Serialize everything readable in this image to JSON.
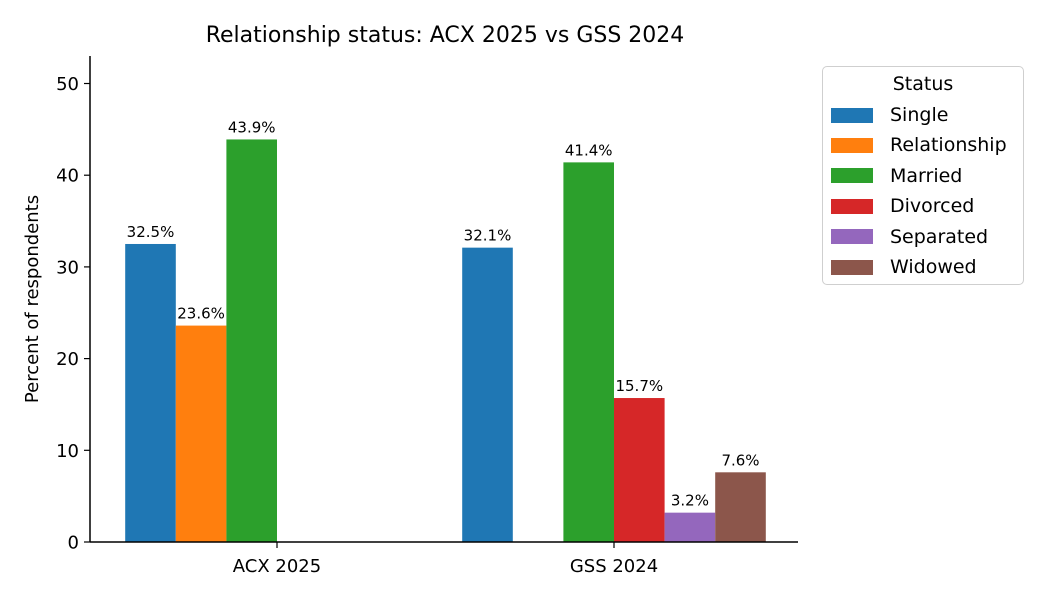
{
  "chart_data": {
    "type": "bar",
    "title": "Relationship status: ACX 2025 vs GSS 2024",
    "xlabel": "",
    "ylabel": "Percent of respondents",
    "categories": [
      "ACX 2025",
      "GSS 2024"
    ],
    "ylim": [
      0,
      53
    ],
    "yticks": [
      "0",
      "10",
      "20",
      "30",
      "40",
      "50"
    ],
    "grid": false,
    "legend": {
      "title": "Status",
      "placement": "outside-right-top"
    },
    "series": [
      {
        "name": "Single",
        "color": "#1f77b4",
        "values": [
          32.5,
          32.1
        ],
        "labels": [
          "32.5%",
          "32.1%"
        ]
      },
      {
        "name": "Relationship",
        "color": "#ff7f0e",
        "values": [
          23.6,
          null
        ],
        "labels": [
          "23.6%",
          null
        ]
      },
      {
        "name": "Married",
        "color": "#2ca02c",
        "values": [
          43.9,
          41.4
        ],
        "labels": [
          "43.9%",
          "41.4%"
        ]
      },
      {
        "name": "Divorced",
        "color": "#d62728",
        "values": [
          null,
          15.7
        ],
        "labels": [
          null,
          "15.7%"
        ]
      },
      {
        "name": "Separated",
        "color": "#9467bd",
        "values": [
          null,
          3.2
        ],
        "labels": [
          null,
          "3.2%"
        ]
      },
      {
        "name": "Widowed",
        "color": "#8c564b",
        "values": [
          null,
          7.6
        ],
        "labels": [
          null,
          "7.6%"
        ]
      }
    ]
  }
}
